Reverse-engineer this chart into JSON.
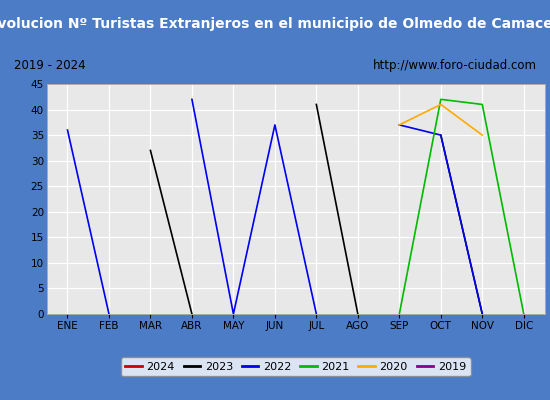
{
  "title": "Evolucion Nº Turistas Extranjeros en el municipio de Olmedo de Camaces",
  "subtitle_left": "2019 - 2024",
  "subtitle_right": "http://www.foro-ciudad.com",
  "title_bg": "#4d7cc7",
  "title_color": "white",
  "plot_bg": "#e8e8e8",
  "months": [
    "ENE",
    "FEB",
    "MAR",
    "ABR",
    "MAY",
    "JUN",
    "JUL",
    "AGO",
    "SEP",
    "OCT",
    "NOV",
    "DIC"
  ],
  "ylim": [
    0,
    45
  ],
  "yticks": [
    0,
    5,
    10,
    15,
    20,
    25,
    30,
    35,
    40,
    45
  ],
  "series": {
    "2024": {
      "color": "#cc0000",
      "data": [
        null,
        null,
        null,
        null,
        null,
        null,
        null,
        null,
        null,
        null,
        null,
        null
      ]
    },
    "2023": {
      "color": "#000000",
      "data": [
        null,
        null,
        32,
        0,
        null,
        null,
        41,
        0,
        null,
        35,
        0,
        null
      ]
    },
    "2022": {
      "color": "#0000ee",
      "data": [
        36,
        0,
        null,
        42,
        0,
        37,
        0,
        null,
        37,
        35,
        0,
        null
      ]
    },
    "2021": {
      "color": "#00bb00",
      "data": [
        null,
        null,
        null,
        null,
        null,
        null,
        null,
        null,
        0,
        42,
        41,
        0
      ]
    },
    "2020": {
      "color": "#ffaa00",
      "data": [
        null,
        null,
        null,
        null,
        null,
        null,
        null,
        null,
        37,
        41,
        35,
        null
      ]
    },
    "2019": {
      "color": "#880088",
      "data": [
        null,
        null,
        null,
        null,
        null,
        null,
        null,
        null,
        null,
        null,
        null,
        null
      ]
    }
  },
  "legend_order": [
    "2024",
    "2023",
    "2022",
    "2021",
    "2020",
    "2019"
  ]
}
